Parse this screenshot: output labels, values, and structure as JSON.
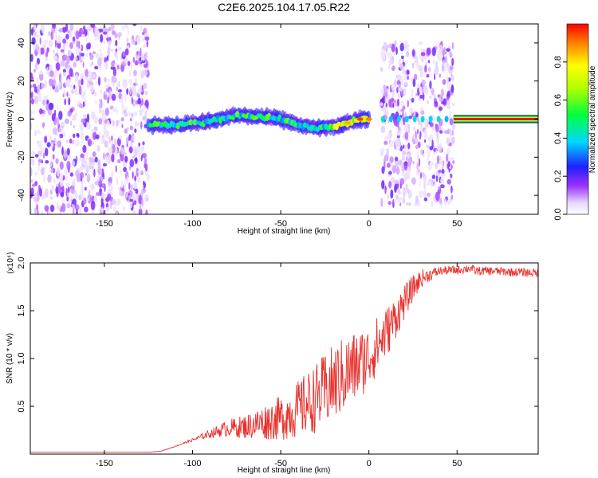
{
  "title": "C2E6.2025.104.17.05.R22",
  "colors": {
    "snr_line": "#e8302c",
    "frame": "#000000",
    "background": "#ffffff"
  },
  "chart_data": [
    {
      "type": "heatmap",
      "xlabel": "Height of straight line (km)",
      "ylabel": "Frequency (Hz)",
      "xlim": [
        -192,
        96
      ],
      "ylim": [
        -50,
        50
      ],
      "xticks": [
        -150,
        -100,
        -50,
        0,
        50
      ],
      "xtick_labels": [
        "-150",
        "-100",
        "-50",
        "0",
        "50"
      ],
      "yticks": [
        40,
        20,
        0,
        -20,
        -40
      ],
      "ytick_labels": [
        "40",
        "20",
        "0",
        "-20",
        "-40"
      ],
      "colorbar": {
        "label": "Normalized spectral amplitude",
        "range": [
          0,
          1
        ],
        "ticks": [
          0.0,
          0.2,
          0.4,
          0.6,
          0.8
        ],
        "tick_labels": [
          "0.0",
          "0.2",
          "0.4",
          "0.6",
          "0.8"
        ],
        "colormap": "rainbow (white → violet → blue → cyan → green → yellow → red)"
      },
      "ridge": {
        "description": "dominant frequency track",
        "x": [
          -125,
          -110,
          -95,
          -85,
          -75,
          -60,
          -50,
          -40,
          -30,
          -20,
          -12,
          -5,
          0
        ],
        "y": [
          -3,
          -3,
          -2,
          0,
          2,
          1,
          0,
          -3,
          -5,
          -4,
          -2,
          0,
          0
        ]
      },
      "steady_tone": {
        "x_range": [
          48,
          96
        ],
        "frequency": 0,
        "amplitude": 1.0
      },
      "noise_regions": [
        {
          "x_range": [
            -192,
            -125
          ],
          "freq_range": [
            -50,
            50
          ],
          "amplitude": "low (~0.05)"
        },
        {
          "x_range": [
            7,
            48
          ],
          "freq_range": [
            -45,
            40
          ],
          "amplitude": "low (~0.1)"
        }
      ]
    },
    {
      "type": "line",
      "xlabel": "Height of straight line (km)",
      "ylabel": "SNR (10 * v/v)",
      "y_multiplier": "(x10⁴)",
      "xlim": [
        -192,
        96
      ],
      "ylim": [
        0,
        2.0
      ],
      "xticks": [
        -150,
        -100,
        -50,
        0,
        50
      ],
      "xtick_labels": [
        "-150",
        "-100",
        "-50",
        "0",
        "50"
      ],
      "yticks": [
        0.5,
        1.0,
        1.5,
        2.0
      ],
      "ytick_labels": [
        "0.5",
        "1.0",
        "1.5",
        "2.0"
      ],
      "series": [
        {
          "x": [
            -192,
            -150,
            -125,
            -118,
            -110,
            -100,
            -90,
            -80,
            -70,
            -60,
            -50,
            -40,
            -30,
            -20,
            -10,
            0,
            10,
            20,
            25,
            30,
            40,
            50,
            58,
            60,
            70,
            80,
            96
          ],
          "y": [
            0.02,
            0.02,
            0.02,
            0.03,
            0.08,
            0.15,
            0.22,
            0.28,
            0.3,
            0.35,
            0.4,
            0.5,
            0.62,
            0.78,
            0.92,
            1.05,
            1.3,
            1.6,
            1.75,
            1.85,
            1.92,
            1.93,
            1.95,
            1.92,
            1.92,
            1.91,
            1.9
          ]
        }
      ]
    }
  ]
}
